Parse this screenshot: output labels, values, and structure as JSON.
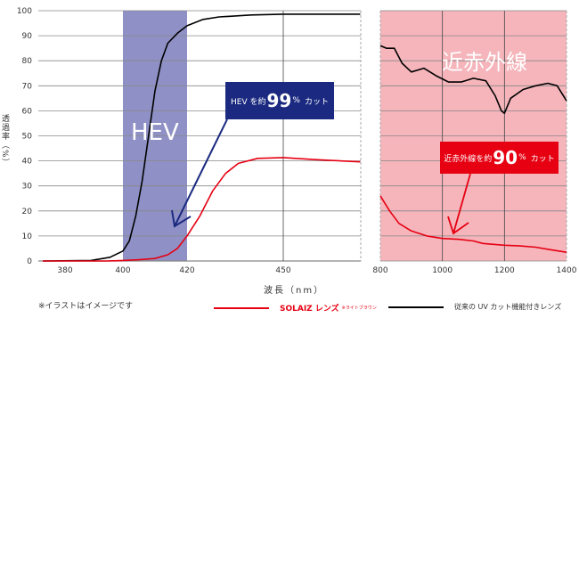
{
  "chart_data": [
    {
      "type": "line",
      "panel": "visible",
      "xlabel": "波長（nm）",
      "ylabel": "透過率（%）",
      "xlim": [
        375,
        474
      ],
      "ylim": [
        0,
        100
      ],
      "x_ticks": [
        380,
        400,
        420,
        450
      ],
      "y_ticks": [
        0,
        10,
        20,
        30,
        40,
        50,
        60,
        70,
        80,
        90,
        100
      ],
      "grid": true,
      "highlight_band": {
        "label": "HEV",
        "range": [
          400,
          420
        ],
        "color": "#8f91c6"
      },
      "annotation": {
        "prefix": "HEV を約",
        "value": "99",
        "suffix_unit": "%",
        "suffix": "カット",
        "color": "#1b2a80"
      },
      "series": [
        {
          "name": "従来の UV カット機能付きレンズ",
          "color": "#000000",
          "x": [
            375,
            390,
            396,
            400,
            402,
            404,
            406,
            408,
            410,
            412,
            414,
            417,
            420,
            425,
            430,
            440,
            450,
            474
          ],
          "y": [
            0,
            0.2,
            1.5,
            4,
            8,
            18,
            32,
            50,
            68,
            80,
            87,
            91,
            94,
            96.5,
            97.5,
            98.3,
            98.6,
            98.6
          ]
        },
        {
          "name": "SOLAIZ レンズ",
          "color": "#e60012",
          "x": [
            375,
            395,
            400,
            405,
            410,
            414,
            417,
            420,
            424,
            428,
            432,
            436,
            442,
            450,
            460,
            474
          ],
          "y": [
            0,
            0,
            0.2,
            0.5,
            1,
            2.5,
            5,
            10,
            18,
            28,
            35,
            39,
            41,
            41.3,
            40.5,
            39.6
          ]
        }
      ]
    },
    {
      "type": "line",
      "panel": "near-infrared",
      "xlim": [
        800,
        1400
      ],
      "ylim": [
        0,
        100
      ],
      "x_ticks": [
        800,
        1000,
        1200,
        1400
      ],
      "grid": true,
      "highlight_band": {
        "label": "近赤外線",
        "range": [
          800,
          1400
        ],
        "color": "#f5b5bb"
      },
      "annotation": {
        "prefix": "近赤外線を約",
        "value": "90",
        "suffix_unit": "%",
        "suffix": "カット",
        "color": "#e60012"
      },
      "series": [
        {
          "name": "従来の UV カット機能付きレンズ",
          "color": "#000000",
          "x": [
            800,
            820,
            845,
            870,
            900,
            940,
            980,
            1020,
            1060,
            1100,
            1140,
            1170,
            1190,
            1200,
            1220,
            1260,
            1300,
            1340,
            1370,
            1400
          ],
          "y": [
            86,
            85,
            85,
            79,
            75.5,
            77,
            74,
            71.5,
            71.5,
            73,
            72,
            66,
            60,
            59,
            65,
            68.5,
            70,
            71,
            70,
            64
          ]
        },
        {
          "name": "SOLAIZ レンズ",
          "color": "#e60012",
          "x": [
            800,
            830,
            860,
            900,
            950,
            1000,
            1050,
            1100,
            1130,
            1160,
            1200,
            1250,
            1300,
            1350,
            1400
          ],
          "y": [
            26,
            20,
            15,
            12,
            10,
            9,
            8.7,
            8,
            7,
            6.7,
            6.3,
            6,
            5.5,
            4.5,
            3.5
          ]
        }
      ]
    }
  ],
  "note": "※イラストはイメージです",
  "legend": {
    "solaiz": {
      "label": "SOLAIZ レンズ",
      "sub": "※ライトブラウン",
      "color": "#e60012"
    },
    "conventional": {
      "label": "従来の UV カット機能付きレンズ",
      "color": "#000000"
    }
  }
}
